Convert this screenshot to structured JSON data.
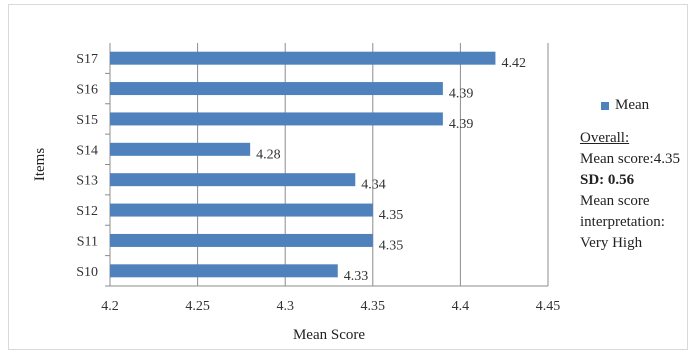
{
  "chart_data": {
    "type": "bar",
    "orientation": "horizontal",
    "categories": [
      "S10",
      "S11",
      "S12",
      "S13",
      "S14",
      "S15",
      "S16",
      "S17"
    ],
    "series": [
      {
        "name": "Mean",
        "values": [
          4.33,
          4.35,
          4.35,
          4.34,
          4.28,
          4.39,
          4.39,
          4.42
        ],
        "color": "#4f81bd"
      }
    ],
    "data_labels": [
      "4.33",
      "4.35",
      "4.35",
      "4.34",
      "4.28",
      "4.39",
      "4.39",
      "4.42"
    ],
    "xlabel": "Mean Score",
    "ylabel": "Items",
    "xlim": [
      4.2,
      4.45
    ],
    "xticks": [
      4.2,
      4.25,
      4.3,
      4.35,
      4.4,
      4.45
    ],
    "xtick_labels": [
      "4.2",
      "4.25",
      "4.3",
      "4.35",
      "4.4",
      "4.45"
    ],
    "grid": true,
    "legend": "right"
  },
  "notes": {
    "overall": "Overall:",
    "mean_score": "Mean score:4.35",
    "sd": "SD: 0.56",
    "interpretation_line1": "Mean score",
    "interpretation_line2": "interpretation:",
    "interpretation_line3": "Very High"
  }
}
